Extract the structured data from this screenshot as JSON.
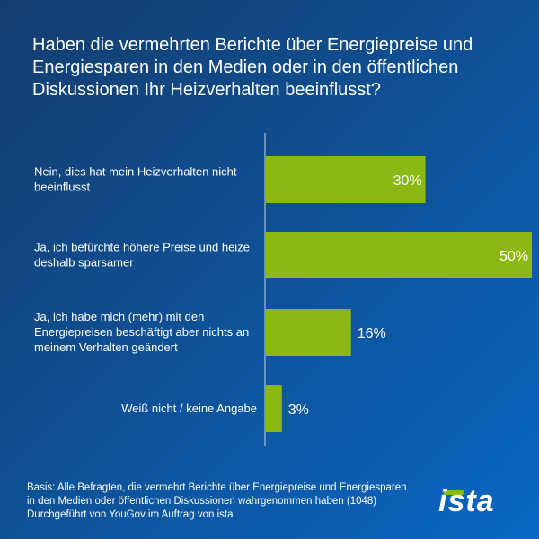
{
  "question": "Haben die vermehrten Berichte über Energiepreise und Energiesparen in den Medien oder in den öffentlichen Diskussionen Ihr Heizverhalten beeinflusst?",
  "colors": {
    "bar": "#8cb814",
    "axis": "#c8d4e6",
    "text": "#ffffff"
  },
  "chart_data": {
    "type": "bar",
    "orientation": "horizontal",
    "categories": [
      [
        "Nein, dies hat mein Heizverhalten nicht",
        "beeinflusst"
      ],
      [
        "Ja, ich befürchte höhere Preise und heize",
        "deshalb sparsamer"
      ],
      [
        "Ja, ich habe mich (mehr) mit den",
        "Energiepreisen beschäftigt aber nichts an",
        "meinem Verhalten geändert"
      ],
      [
        "Weiß nicht / keine Angabe"
      ]
    ],
    "values": [
      30,
      50,
      16,
      3
    ],
    "value_labels": [
      "30%",
      "50%",
      "16%",
      "3%"
    ],
    "xlim": [
      0,
      50
    ],
    "grid": false
  },
  "footnote": [
    "Basis: Alle Befragten, die vermehrt Berichte über Energiepreise und Energiesparen",
    "in den Medien oder öffentlichen Diskussionen wahrgenommen haben (1048)",
    "Durchgeführt von YouGov im Auftrag von ista"
  ],
  "logo": "ista"
}
